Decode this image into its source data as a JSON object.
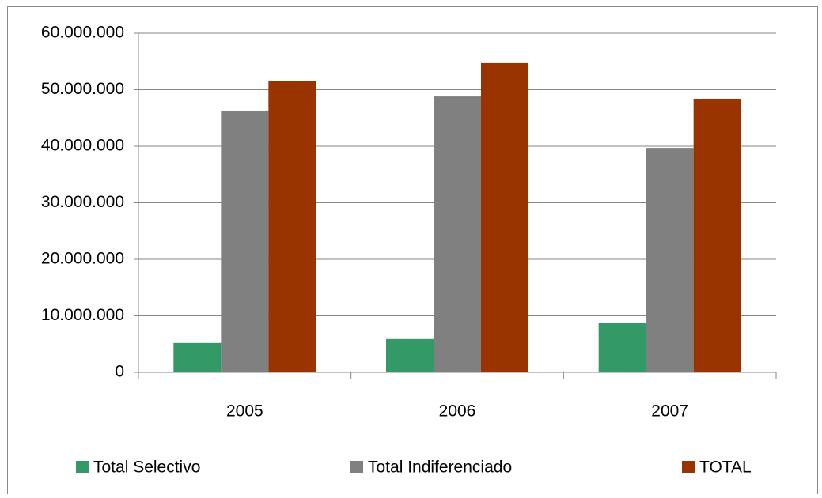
{
  "chart_data": {
    "type": "bar",
    "categories": [
      "2005",
      "2006",
      "2007"
    ],
    "series": [
      {
        "name": "Total Selectivo",
        "color": "#339966",
        "values": [
          5200000,
          5900000,
          8700000
        ]
      },
      {
        "name": "Total Indiferenciado",
        "color": "#808080",
        "values": [
          46300000,
          48800000,
          39700000
        ]
      },
      {
        "name": "TOTAL",
        "color": "#993300",
        "values": [
          51600000,
          54700000,
          48400000
        ]
      }
    ],
    "ylim": [
      0,
      60000000
    ],
    "yticks": [
      0,
      {
        "value": 10000000,
        "label": "10.000.000"
      },
      {
        "value": 20000000,
        "label": "20.000.000"
      },
      {
        "value": 30000000,
        "label": "30.000.000"
      },
      {
        "value": 40000000,
        "label": "40.000.000"
      },
      {
        "value": 50000000,
        "label": "50.000.000"
      },
      {
        "value": 60000000,
        "label": "60.000.000"
      }
    ],
    "grid": true,
    "legend": "bottom"
  }
}
